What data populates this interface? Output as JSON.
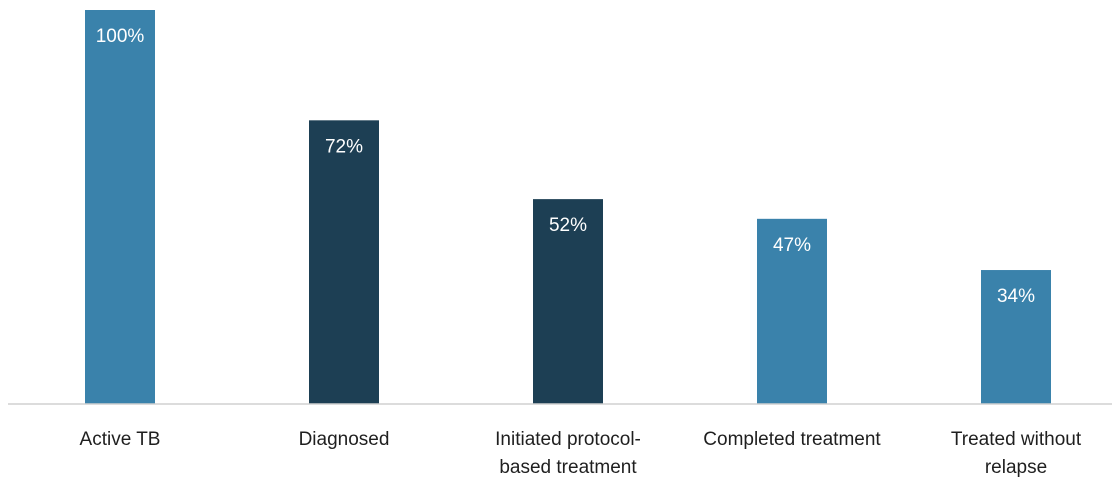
{
  "chart_data": {
    "type": "bar",
    "categories": [
      [
        "Active TB"
      ],
      [
        "Diagnosed"
      ],
      [
        "Initiated protocol-",
        "based treatment"
      ],
      [
        "Completed treatment"
      ],
      [
        "Treated without",
        "relapse"
      ]
    ],
    "values": [
      100,
      72,
      52,
      47,
      34
    ],
    "value_labels": [
      "100%",
      "72%",
      "52%",
      "47%",
      "34%"
    ],
    "bar_colors": [
      "#3a82ab",
      "#1d3f54",
      "#1d3f54",
      "#3a82ab",
      "#3a82ab"
    ],
    "axis_color": "#d0d0d0",
    "ylim": [
      0,
      100
    ],
    "title": "",
    "xlabel": "",
    "ylabel": "",
    "grid": false,
    "legend": "none"
  }
}
